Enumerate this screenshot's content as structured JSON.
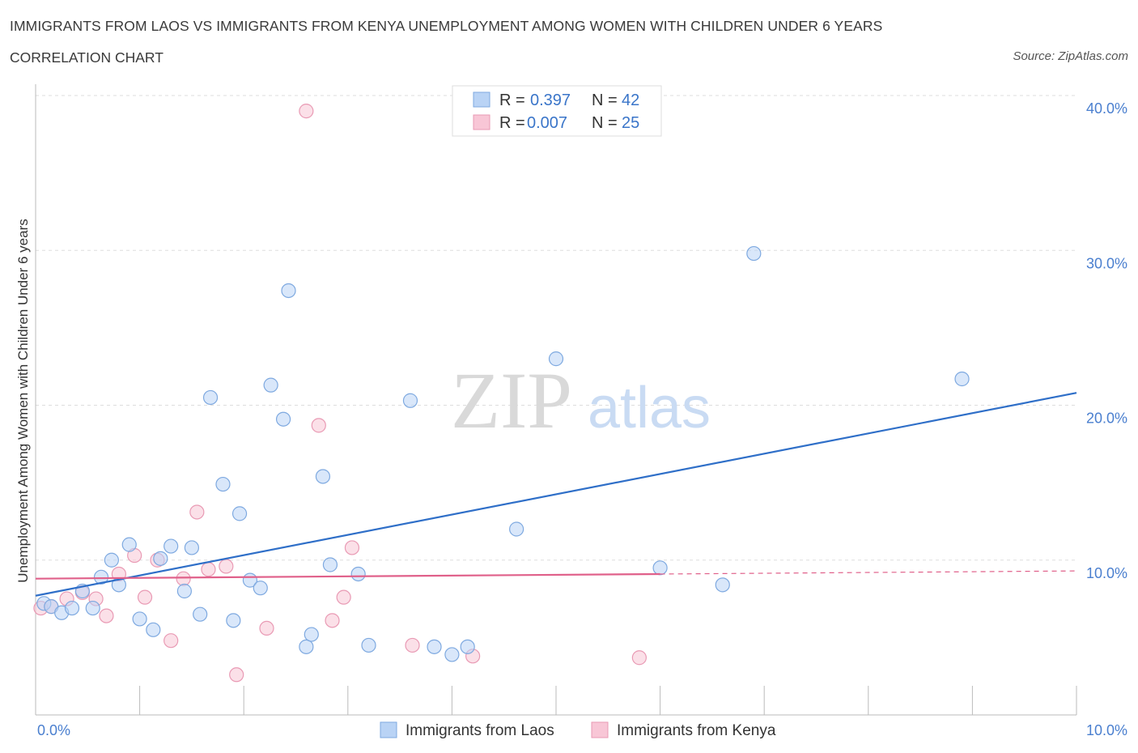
{
  "header": {
    "title": "IMMIGRANTS FROM LAOS VS IMMIGRANTS FROM KENYA UNEMPLOYMENT AMONG WOMEN WITH CHILDREN UNDER 6 YEARS",
    "subtitle": "CORRELATION CHART",
    "source": "Source: ZipAtlas.com"
  },
  "watermark": {
    "zip": "ZIP",
    "atlas": "atlas"
  },
  "colors": {
    "laos_fill": "#b9d3f5",
    "laos_stroke": "#7ea9e0",
    "laos_line": "#2f6fc8",
    "kenya_fill": "#f8c6d6",
    "kenya_stroke": "#e99ab4",
    "kenya_line": "#e0608a",
    "tick_text": "#4a7fcf",
    "grid": "#dddddd"
  },
  "legend": {
    "rows": [
      {
        "r_label": "R =",
        "r_value": "0.397",
        "n_label": "N =",
        "n_value": "42"
      },
      {
        "r_label": "R =",
        "r_value": "0.007",
        "n_label": "N =",
        "n_value": "25"
      }
    ]
  },
  "chart_data": {
    "type": "scatter",
    "title": "IMMIGRANTS FROM LAOS VS IMMIGRANTS FROM KENYA UNEMPLOYMENT AMONG WOMEN WITH CHILDREN UNDER 6 YEARS",
    "xlabel": "",
    "ylabel": "Unemployment Among Women with Children Under 6 years",
    "xlim": [
      0,
      10
    ],
    "ylim": [
      0,
      40
    ],
    "x_tick_labels": [
      "0.0%",
      "10.0%"
    ],
    "y_ticks": [
      10,
      20,
      30,
      40
    ],
    "y_tick_labels": [
      "10.0%",
      "20.0%",
      "30.0%",
      "40.0%"
    ],
    "grid": true,
    "legend_position": "top-center",
    "series": [
      {
        "name": "Immigrants from Laos",
        "points": [
          [
            0.08,
            7.2
          ],
          [
            0.15,
            7.0
          ],
          [
            0.25,
            6.6
          ],
          [
            0.35,
            6.9
          ],
          [
            0.45,
            8.0
          ],
          [
            0.55,
            6.9
          ],
          [
            0.63,
            8.9
          ],
          [
            0.73,
            10.0
          ],
          [
            0.8,
            8.4
          ],
          [
            0.9,
            11.0
          ],
          [
            1.0,
            6.2
          ],
          [
            1.13,
            5.5
          ],
          [
            1.2,
            10.1
          ],
          [
            1.3,
            10.9
          ],
          [
            1.43,
            8.0
          ],
          [
            1.5,
            10.8
          ],
          [
            1.58,
            6.5
          ],
          [
            1.68,
            20.5
          ],
          [
            1.8,
            14.9
          ],
          [
            1.9,
            6.1
          ],
          [
            1.96,
            13.0
          ],
          [
            2.06,
            8.7
          ],
          [
            2.16,
            8.2
          ],
          [
            2.26,
            21.3
          ],
          [
            2.38,
            19.1
          ],
          [
            2.43,
            27.4
          ],
          [
            2.6,
            4.4
          ],
          [
            2.65,
            5.2
          ],
          [
            2.76,
            15.4
          ],
          [
            2.83,
            9.7
          ],
          [
            3.1,
            9.1
          ],
          [
            3.2,
            4.5
          ],
          [
            3.6,
            20.3
          ],
          [
            3.83,
            4.4
          ],
          [
            4.0,
            3.9
          ],
          [
            4.15,
            4.4
          ],
          [
            4.62,
            12.0
          ],
          [
            5.0,
            23.0
          ],
          [
            6.0,
            9.5
          ],
          [
            6.6,
            8.4
          ],
          [
            6.9,
            29.8
          ],
          [
            8.9,
            21.7
          ]
        ],
        "trend": {
          "x": [
            0,
            10
          ],
          "y": [
            7.7,
            20.8
          ]
        }
      },
      {
        "name": "Immigrants from Kenya",
        "points": [
          [
            0.05,
            6.9
          ],
          [
            0.15,
            7.0
          ],
          [
            0.3,
            7.5
          ],
          [
            0.45,
            7.9
          ],
          [
            0.58,
            7.5
          ],
          [
            0.68,
            6.4
          ],
          [
            0.8,
            9.1
          ],
          [
            0.95,
            10.3
          ],
          [
            1.05,
            7.6
          ],
          [
            1.17,
            10.0
          ],
          [
            1.3,
            4.8
          ],
          [
            1.42,
            8.8
          ],
          [
            1.55,
            13.1
          ],
          [
            1.66,
            9.4
          ],
          [
            1.83,
            9.6
          ],
          [
            1.93,
            2.6
          ],
          [
            2.22,
            5.6
          ],
          [
            2.6,
            39.0
          ],
          [
            2.72,
            18.7
          ],
          [
            2.85,
            6.1
          ],
          [
            2.96,
            7.6
          ],
          [
            3.04,
            10.8
          ],
          [
            3.62,
            4.5
          ],
          [
            4.2,
            3.8
          ],
          [
            5.8,
            3.7
          ]
        ],
        "trend": {
          "x": [
            0,
            6.0
          ],
          "y": [
            8.8,
            9.1
          ],
          "dashed_extension": {
            "x": [
              6.0,
              10
            ],
            "y": [
              9.1,
              9.3
            ]
          }
        }
      }
    ]
  }
}
